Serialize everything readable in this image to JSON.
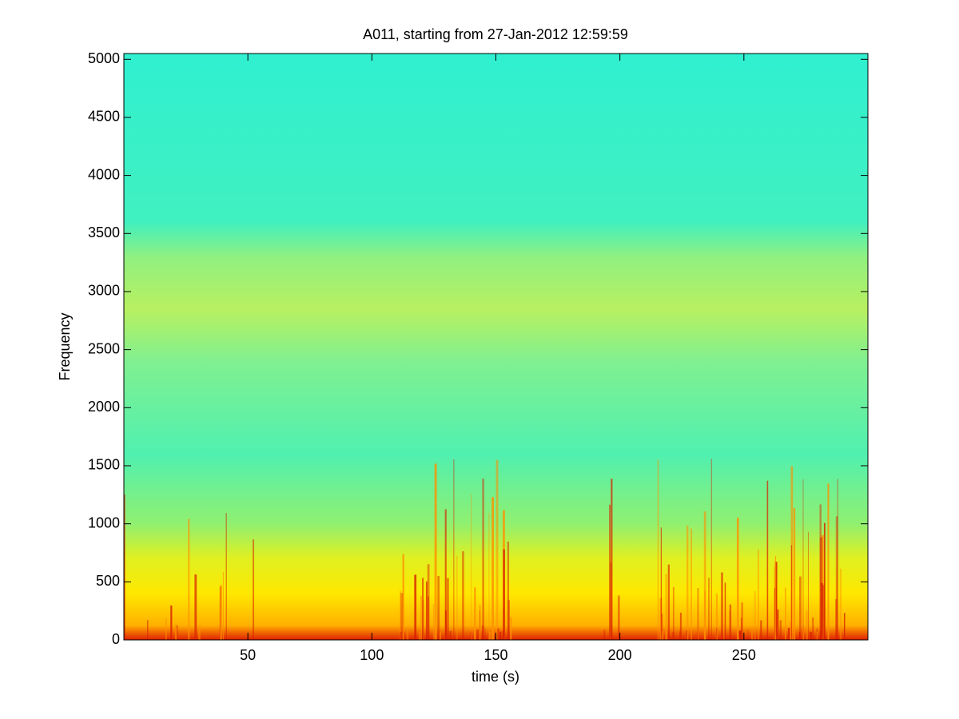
{
  "chart_data": {
    "type": "spectrogram",
    "title": "A011, starting from 27-Jan-2012 12:59:59",
    "x_label": "time (s)",
    "y_label": "Frequency",
    "xlim": [
      0,
      300
    ],
    "xticks": [
      50,
      100,
      150,
      200,
      250
    ],
    "ylim": [
      0,
      5050
    ],
    "yticks": [
      0,
      500,
      1000,
      1500,
      2000,
      2500,
      3000,
      3500,
      4000,
      4500,
      5000
    ],
    "grid": false
  }
}
